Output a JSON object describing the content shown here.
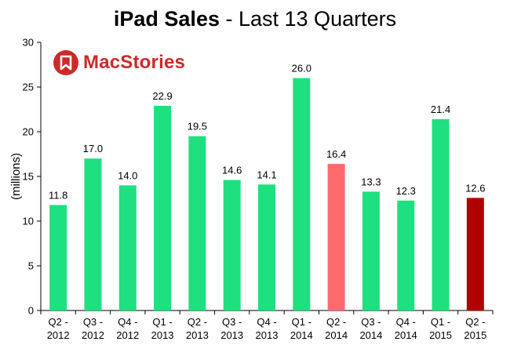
{
  "chart_data": {
    "type": "bar",
    "title_bold": "iPad Sales",
    "title_rest": "- Last 13 Quarters",
    "ylabel": "(millions)",
    "xlabel": "",
    "ylim": [
      0,
      30
    ],
    "yticks": [
      0,
      5,
      10,
      15,
      20,
      25,
      30
    ],
    "grid": false,
    "categories": [
      [
        "Q2 -",
        "2012"
      ],
      [
        "Q3 -",
        "2012"
      ],
      [
        "Q4 -",
        "2012"
      ],
      [
        "Q1 -",
        "2013"
      ],
      [
        "Q2 -",
        "2013"
      ],
      [
        "Q3 -",
        "2013"
      ],
      [
        "Q4 -",
        "2013"
      ],
      [
        "Q1 -",
        "2014"
      ],
      [
        "Q2 -",
        "2014"
      ],
      [
        "Q3 -",
        "2014"
      ],
      [
        "Q4 -",
        "2014"
      ],
      [
        "Q1 -",
        "2015"
      ],
      [
        "Q2 -",
        "2015"
      ]
    ],
    "values": [
      11.8,
      17.0,
      14.0,
      22.9,
      19.5,
      14.6,
      14.1,
      26.0,
      16.4,
      13.3,
      12.3,
      21.4,
      12.6
    ],
    "value_labels": [
      "11.8",
      "17.0",
      "14.0",
      "22.9",
      "19.5",
      "14.6",
      "14.1",
      "26.0",
      "16.4",
      "13.3",
      "12.3",
      "21.4",
      "12.6"
    ],
    "bar_colors": [
      "#1ee080",
      "#1ee080",
      "#1ee080",
      "#1ee080",
      "#1ee080",
      "#1ee080",
      "#1ee080",
      "#1ee080",
      "#ff6a6e",
      "#1ee080",
      "#1ee080",
      "#1ee080",
      "#b10000"
    ]
  },
  "logo": {
    "text": "MacStories",
    "color": "#cc2a2a",
    "icon": "bookmark-icon"
  }
}
